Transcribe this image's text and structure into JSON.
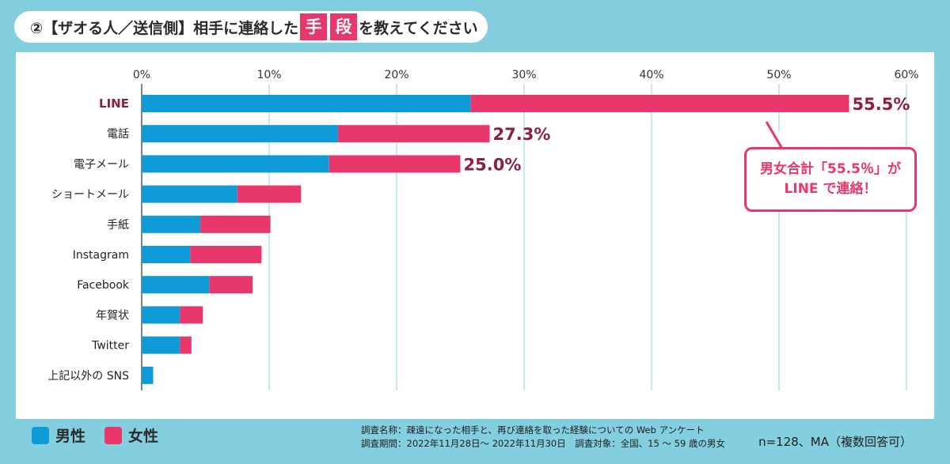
{
  "title": {
    "prefix": "②【ザオる人／送信側】相手に連絡した",
    "hl1": "手",
    "hl2": "段",
    "suffix": "を教えてください"
  },
  "callout": {
    "line1": "男女合計「55.5％」が",
    "line2": "LINE で連絡！"
  },
  "legend": {
    "male": "男性",
    "female": "女性"
  },
  "footer": {
    "line1": "調査名称：疎遠になった相手と、再び連絡を取った経験についての Web アンケート",
    "line2": "調査期間：2022年11月28日～ 2022年11月30日　調査対象：全国、15 ～ 59 歳の男女"
  },
  "note": "n=128、MA（複数回答可）",
  "colors": {
    "male": "#0f9bd8",
    "female": "#e8376a",
    "grid": "#8fd3e2",
    "highlight": "#8c1f45"
  },
  "chart_data": {
    "type": "bar",
    "orientation": "horizontal",
    "stacked": true,
    "xlim": [
      0,
      60
    ],
    "xticks": [
      "0%",
      "10%",
      "20%",
      "30%",
      "40%",
      "50%",
      "60%"
    ],
    "grid": true,
    "legend_position": "bottom-left",
    "categories": [
      "LINE",
      "電話",
      "電子メール",
      "ショートメール",
      "手紙",
      "Instagram",
      "Facebook",
      "年賀状",
      "Twitter",
      "上記以外の SNS"
    ],
    "series": [
      {
        "name": "男性",
        "values": [
          25.8,
          15.4,
          14.7,
          7.5,
          4.6,
          3.8,
          5.3,
          3.0,
          3.0,
          0.9
        ]
      },
      {
        "name": "女性",
        "values": [
          29.7,
          11.9,
          10.3,
          5.0,
          5.5,
          5.6,
          3.4,
          1.8,
          0.9,
          0.0
        ]
      }
    ],
    "totals": [
      "55.5%",
      "27.3%",
      "25.0%"
    ],
    "highlight_category": "LINE"
  }
}
